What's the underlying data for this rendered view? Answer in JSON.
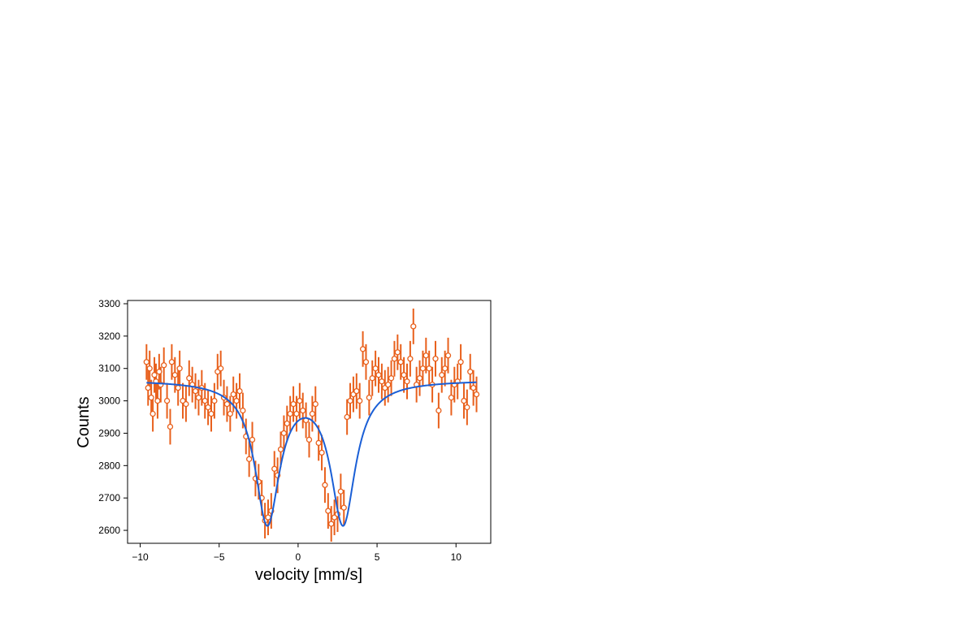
{
  "chart_data": {
    "type": "scatter",
    "title": "",
    "xlabel": "velocity [mm/s]",
    "ylabel": "Counts",
    "xlim": [
      -10.8,
      12.2
    ],
    "ylim": [
      2560,
      3310
    ],
    "x_ticks": [
      -10,
      -5,
      0,
      5,
      10
    ],
    "x_tick_labels": [
      "−10",
      "−5",
      "0",
      "5",
      "10"
    ],
    "y_ticks": [
      2600,
      2700,
      2800,
      2900,
      3000,
      3100,
      3200,
      3300
    ],
    "y_tick_labels": [
      "2600",
      "2700",
      "2800",
      "2900",
      "3000",
      "3100",
      "3200",
      "3300"
    ],
    "grid": false,
    "legend": "none",
    "colors": {
      "data": "#e8601c",
      "fit": "#1a5fd6",
      "axis": "#000000"
    },
    "data_error": 55,
    "series": [
      {
        "kind": "points_with_error_bars",
        "x": [
          -9.6,
          -9.5,
          -9.4,
          -9.3,
          -9.2,
          -9.1,
          -9.0,
          -8.9,
          -8.8,
          -8.7,
          -8.5,
          -8.3,
          -8.1,
          -8.0,
          -7.8,
          -7.6,
          -7.5,
          -7.3,
          -7.1,
          -6.9,
          -6.7,
          -6.5,
          -6.3,
          -6.1,
          -5.9,
          -5.7,
          -5.5,
          -5.3,
          -5.1,
          -4.9,
          -4.7,
          -4.5,
          -4.3,
          -4.1,
          -3.9,
          -3.7,
          -3.5,
          -3.3,
          -3.1,
          -2.9,
          -2.7,
          -2.5,
          -2.3,
          -2.1,
          -1.9,
          -1.7,
          -1.5,
          -1.3,
          -1.1,
          -0.9,
          -0.7,
          -0.5,
          -0.3,
          -0.1,
          0.1,
          0.3,
          0.5,
          0.7,
          0.9,
          1.1,
          1.3,
          1.5,
          1.7,
          1.9,
          2.1,
          2.3,
          2.5,
          2.7,
          2.9,
          3.1,
          3.3,
          3.5,
          3.7,
          3.9,
          4.1,
          4.3,
          4.5,
          4.7,
          4.9,
          5.1,
          5.3,
          5.5,
          5.7,
          5.9,
          6.1,
          6.3,
          6.5,
          6.7,
          6.9,
          7.1,
          7.3,
          7.5,
          7.7,
          7.9,
          8.1,
          8.3,
          8.5,
          8.7,
          8.9,
          9.1,
          9.3,
          9.5,
          9.7,
          9.9,
          10.1,
          10.3,
          10.5,
          10.7,
          10.9,
          11.1,
          11.3
        ],
        "y": [
          3120,
          3040,
          3100,
          3010,
          2960,
          3080,
          3060,
          3000,
          3090,
          3050,
          3110,
          3000,
          2920,
          3120,
          3080,
          3040,
          3100,
          3000,
          2990,
          3070,
          3050,
          3030,
          3010,
          3040,
          3000,
          2980,
          2960,
          3000,
          3090,
          3100,
          3010,
          2990,
          2960,
          3020,
          3000,
          3030,
          2970,
          2890,
          2820,
          2880,
          2760,
          2750,
          2700,
          2630,
          2640,
          2660,
          2790,
          2770,
          2850,
          2900,
          2930,
          2960,
          2990,
          2960,
          3000,
          2970,
          2940,
          2880,
          2960,
          2990,
          2870,
          2840,
          2740,
          2660,
          2620,
          2640,
          2650,
          2720,
          2670,
          2950,
          3000,
          3020,
          3030,
          3000,
          3160,
          3120,
          3010,
          3070,
          3100,
          3080,
          3060,
          3040,
          3050,
          3070,
          3130,
          3150,
          3120,
          3080,
          3060,
          3130,
          3230,
          3050,
          3070,
          3100,
          3140,
          3100,
          3050,
          3130,
          2970,
          3080,
          3100,
          3140,
          3010,
          3050,
          3060,
          3120,
          3000,
          2980,
          3090,
          3040,
          3020
        ]
      },
      {
        "kind": "fit_curve",
        "model": "two_lorentzian_doublet",
        "baseline": 3065,
        "peaks": [
          {
            "center": -1.95,
            "depth": 435,
            "hwhm": 0.95
          },
          {
            "center": 2.85,
            "depth": 435,
            "hwhm": 0.95
          }
        ],
        "x_range": [
          -9.6,
          11.3
        ]
      }
    ]
  }
}
